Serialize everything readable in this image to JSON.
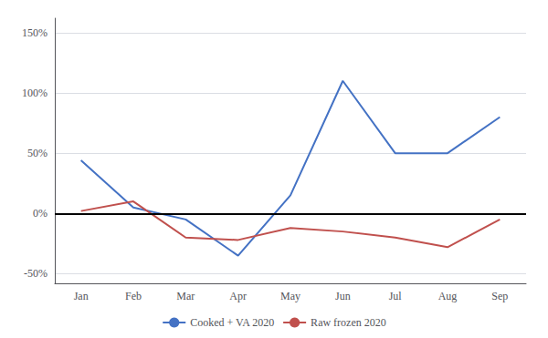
{
  "chart_data": {
    "type": "line",
    "categories": [
      "Jan",
      "Feb",
      "Mar",
      "Apr",
      "May",
      "Jun",
      "Jul",
      "Aug",
      "Sep"
    ],
    "series": [
      {
        "name": "Cooked + VA 2020",
        "color": "#4472C4",
        "values": [
          0.44,
          0.05,
          -0.05,
          -0.35,
          0.15,
          1.1,
          0.5,
          0.5,
          0.8
        ]
      },
      {
        "name": "Raw frozen 2020",
        "color": "#C0504D",
        "values": [
          0.02,
          0.1,
          -0.2,
          -0.22,
          -0.12,
          -0.15,
          -0.2,
          -0.28,
          -0.05
        ]
      }
    ],
    "ylim": [
      -0.58,
      1.62
    ],
    "yticks": [
      {
        "value": -0.5,
        "label": "-50%"
      },
      {
        "value": 0.0,
        "label": "0%"
      },
      {
        "value": 0.5,
        "label": "50%"
      },
      {
        "value": 1.0,
        "label": "100%"
      },
      {
        "value": 1.5,
        "label": "150%"
      }
    ],
    "grid": true,
    "legend": "bottom"
  }
}
